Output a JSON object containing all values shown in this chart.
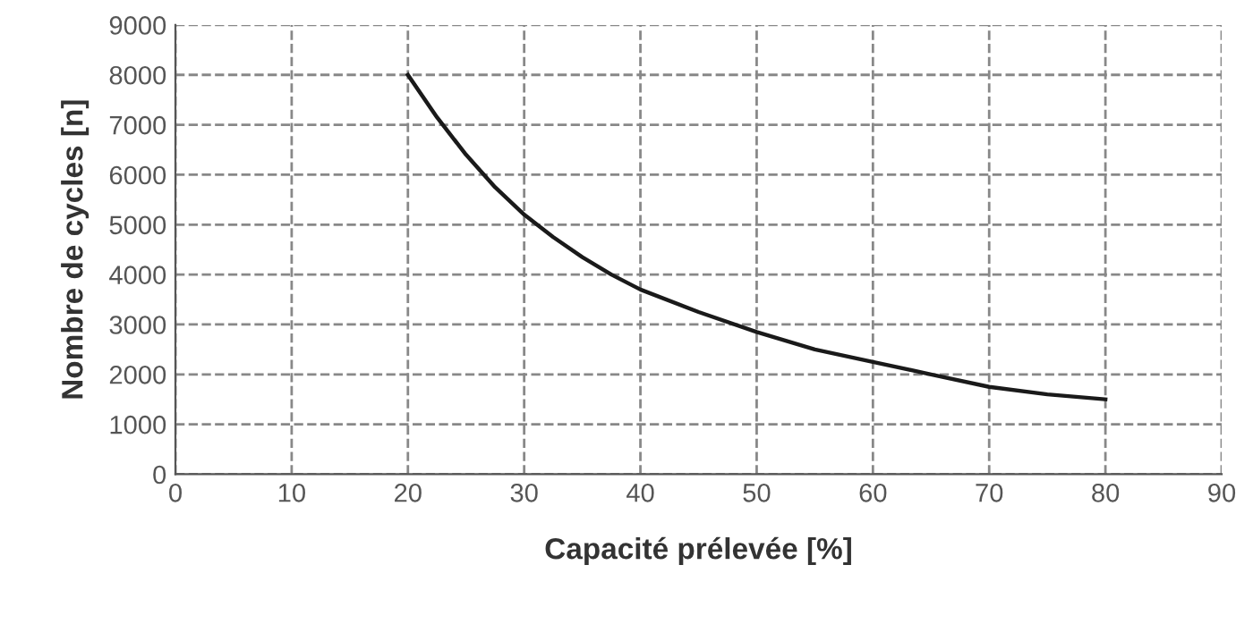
{
  "chart_data": {
    "type": "line",
    "xlabel": "Capacité prélevée [%]",
    "ylabel": "Nombre de cycles [n]",
    "series": [
      {
        "color": "#1a1a1a",
        "x": [
          20,
          22.5,
          25,
          27.5,
          30,
          32.5,
          35,
          37.5,
          40,
          45,
          50,
          55,
          60,
          65,
          70,
          75,
          80
        ],
        "values": [
          8000,
          7150,
          6400,
          5750,
          5200,
          4750,
          4350,
          4000,
          3700,
          3250,
          2850,
          2500,
          2250,
          2000,
          1750,
          1600,
          1500
        ]
      }
    ],
    "xlim": [
      0,
      90
    ],
    "xticks": [
      0,
      10,
      20,
      30,
      40,
      50,
      60,
      70,
      80,
      90
    ],
    "ylim": [
      0,
      9000
    ],
    "yticks": [
      0,
      1000,
      2000,
      3000,
      4000,
      5000,
      6000,
      7000,
      8000,
      9000
    ],
    "grid": true,
    "line_style": "solid",
    "marker": "none",
    "legend": false
  }
}
